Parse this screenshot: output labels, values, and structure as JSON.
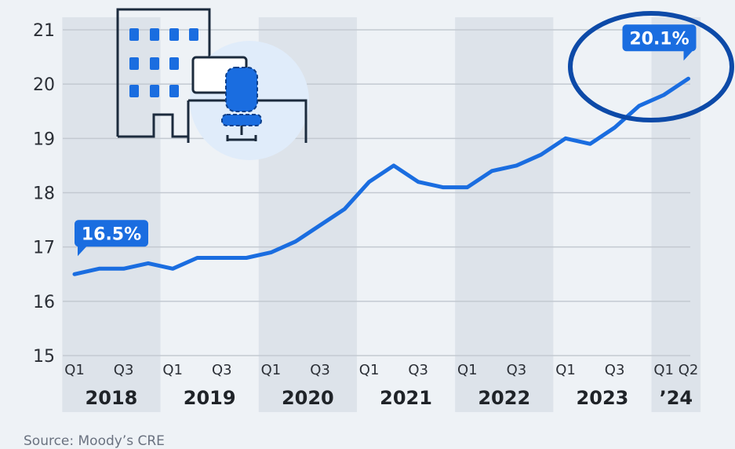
{
  "chart_data": {
    "type": "line",
    "title": "",
    "xlabel": "",
    "ylabel": "",
    "ylim": [
      15,
      21
    ],
    "y_ticks": [
      15,
      16,
      17,
      18,
      19,
      20,
      21
    ],
    "grid": true,
    "x": [
      "2018 Q1",
      "2018 Q2",
      "2018 Q3",
      "2018 Q4",
      "2019 Q1",
      "2019 Q2",
      "2019 Q3",
      "2019 Q4",
      "2020 Q1",
      "2020 Q2",
      "2020 Q3",
      "2020 Q4",
      "2021 Q1",
      "2021 Q2",
      "2021 Q3",
      "2021 Q4",
      "2022 Q1",
      "2022 Q2",
      "2022 Q3",
      "2022 Q4",
      "2023 Q1",
      "2023 Q2",
      "2023 Q3",
      "2023 Q4",
      "2024 Q1",
      "2024 Q2"
    ],
    "series": [
      {
        "values": [
          16.5,
          16.6,
          16.6,
          16.7,
          16.6,
          16.8,
          16.8,
          16.8,
          16.9,
          17.1,
          17.4,
          17.7,
          18.2,
          18.5,
          18.2,
          18.1,
          18.1,
          18.4,
          18.5,
          18.7,
          19.0,
          18.9,
          19.2,
          19.6,
          19.8,
          20.1
        ]
      }
    ],
    "quarter_labels": [
      "Q1",
      "",
      "Q3",
      "",
      "Q1",
      "",
      "Q3",
      "",
      "Q1",
      "",
      "Q3",
      "",
      "Q1",
      "",
      "Q3",
      "",
      "Q1",
      "",
      "Q3",
      "",
      "Q1",
      "",
      "Q3",
      "",
      "Q1",
      "Q2"
    ],
    "year_labels": [
      "2018",
      "2019",
      "2020",
      "2021",
      "2022",
      "2023",
      "’24"
    ],
    "annotations": [
      {
        "text": "16.5%",
        "index": 0
      },
      {
        "text": "20.1%",
        "index": 25,
        "highlighted": true
      }
    ],
    "colors": {
      "line": "#1a6de0",
      "callout": "#1a6de0",
      "band": "#dde3ea",
      "grid": "#c3c9d1",
      "circle": "#0d4aa8"
    }
  },
  "source": "Source: Moody’s CRE",
  "illustration": {
    "icons": [
      "office-building-icon",
      "office-chair-icon"
    ]
  }
}
